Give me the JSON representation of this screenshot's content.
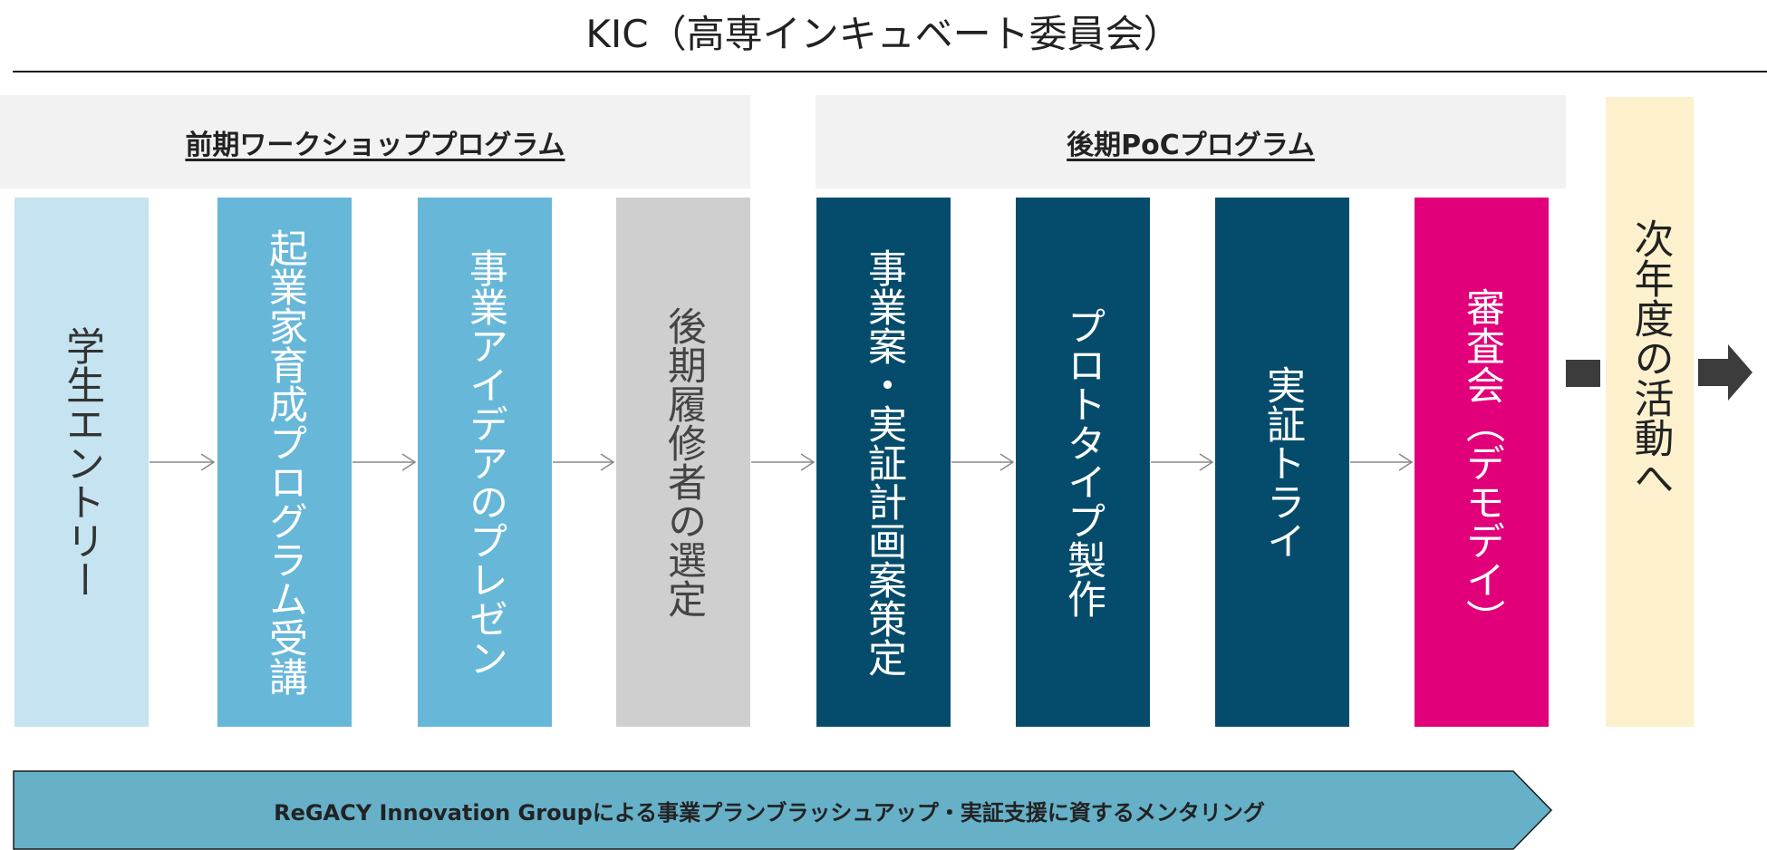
{
  "title": "KIC（高専インキュベート委員会）",
  "sections": {
    "first": "前期ワークショッププログラム",
    "second": "後期PoCプログラム"
  },
  "steps": [
    {
      "label": "学生エントリー",
      "bg": "#c5e3f0",
      "fg": "#333333"
    },
    {
      "label": "起業家育成プログラム受講",
      "bg": "#67b7d9",
      "fg": "#ffffff"
    },
    {
      "label": "事業アイデアのプレゼン",
      "bg": "#67b7d9",
      "fg": "#ffffff"
    },
    {
      "label": "後期履修者の選定",
      "bg": "#d0cfd0",
      "fg": "#444444"
    },
    {
      "label": "事業案・実証計画案策定",
      "bg": "#054c6c",
      "fg": "#ffffff"
    },
    {
      "label": "プロトタイプ製作",
      "bg": "#054c6c",
      "fg": "#ffffff"
    },
    {
      "label": "実証トライ",
      "bg": "#054c6c",
      "fg": "#ffffff"
    },
    {
      "label": "審査会（デモデイ）",
      "bg": "#e2007a",
      "fg": "#ffffff"
    }
  ],
  "next_step": "次年度の活動へ",
  "banner": "ReGACY Innovation Groupによる事業プランブラッシュアップ・実証支援に資するメンタリング",
  "colors": {
    "connector": "#888888",
    "block_arrow": "#3c3c3c",
    "banner_fill": "#66b0c8",
    "banner_stroke": "#1a1a1a"
  }
}
